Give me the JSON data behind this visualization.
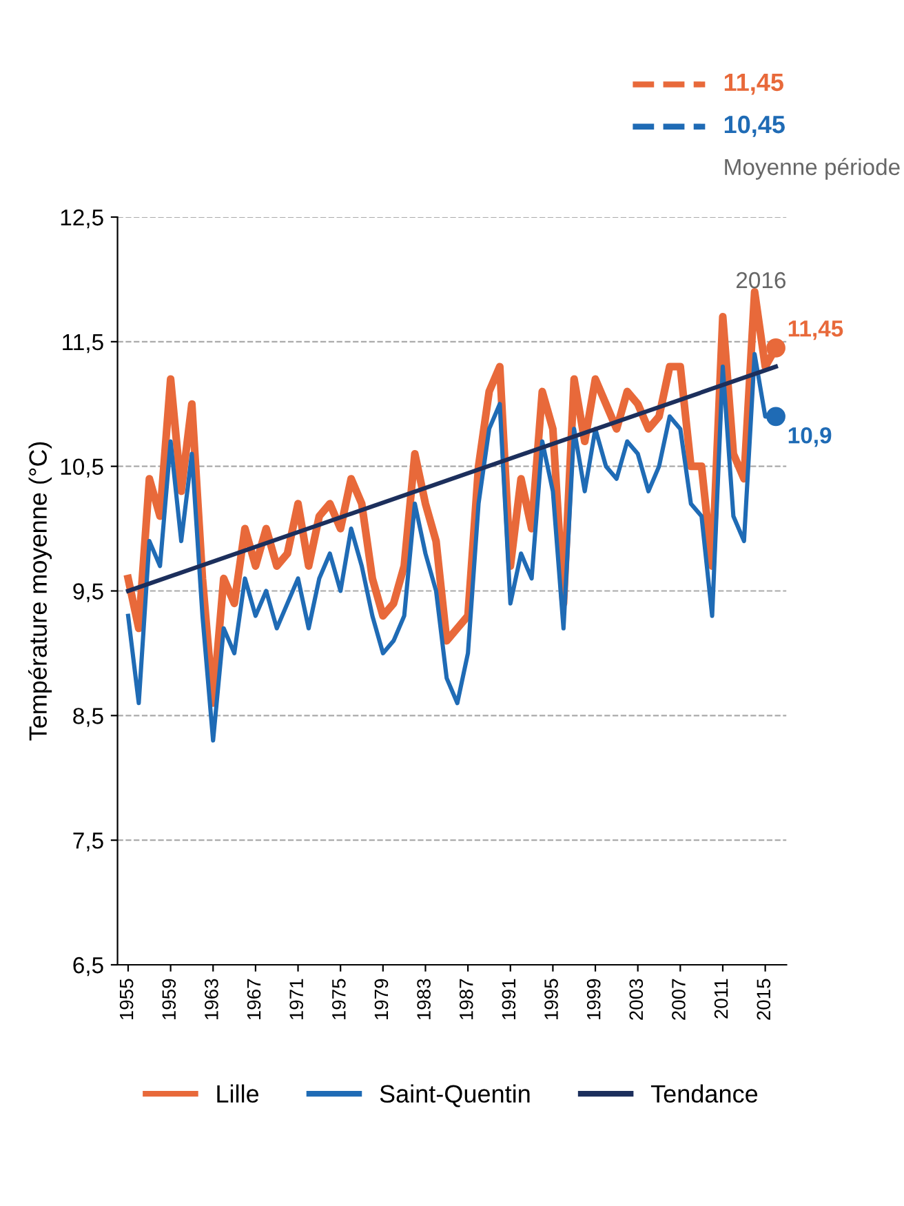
{
  "chart_data": {
    "type": "line",
    "ylabel": "Température moyenne (°C)",
    "x": [
      1955,
      1956,
      1957,
      1958,
      1959,
      1960,
      1961,
      1962,
      1963,
      1964,
      1965,
      1966,
      1967,
      1968,
      1969,
      1970,
      1971,
      1972,
      1973,
      1974,
      1975,
      1976,
      1977,
      1978,
      1979,
      1980,
      1981,
      1982,
      1983,
      1984,
      1985,
      1986,
      1987,
      1988,
      1989,
      1990,
      1991,
      1992,
      1993,
      1994,
      1995,
      1996,
      1997,
      1998,
      1999,
      2000,
      2001,
      2002,
      2003,
      2004,
      2005,
      2006,
      2007,
      2008,
      2009,
      2010,
      2011,
      2012,
      2013,
      2014,
      2015,
      2016
    ],
    "series": [
      {
        "name": "Lille",
        "color": "#e8693a",
        "values": [
          9.6,
          9.2,
          10.4,
          10.1,
          11.2,
          10.3,
          11.0,
          9.6,
          8.6,
          9.6,
          9.4,
          10.0,
          9.7,
          10.0,
          9.7,
          9.8,
          10.2,
          9.7,
          10.1,
          10.2,
          10.0,
          10.4,
          10.2,
          9.6,
          9.3,
          9.4,
          9.7,
          10.6,
          10.2,
          9.9,
          9.1,
          9.2,
          9.3,
          10.5,
          11.1,
          11.3,
          9.7,
          10.4,
          10.0,
          11.1,
          10.8,
          9.4,
          11.2,
          10.7,
          11.2,
          11.0,
          10.8,
          11.1,
          11.0,
          10.8,
          10.9,
          11.3,
          11.3,
          10.5,
          10.5,
          9.7,
          11.7,
          10.6,
          10.4,
          11.9,
          11.3,
          11.45
        ],
        "value_labels": [
          null,
          null,
          null,
          null,
          null,
          null,
          null,
          null,
          null,
          null,
          null,
          null,
          null,
          null,
          null,
          null,
          null,
          null,
          null,
          null,
          null,
          null,
          null,
          null,
          null,
          null,
          null,
          null,
          null,
          null,
          null,
          null,
          null,
          null,
          null,
          null,
          null,
          null,
          null,
          null,
          null,
          null,
          null,
          null,
          null,
          null,
          null,
          null,
          null,
          null,
          null,
          null,
          null,
          null,
          null,
          null,
          null,
          null,
          null,
          null,
          null,
          "11,45"
        ]
      },
      {
        "name": "Saint-Quentin",
        "color": "#1f6bb5",
        "values": [
          9.3,
          8.6,
          9.9,
          9.7,
          10.7,
          9.9,
          10.6,
          9.3,
          8.3,
          9.2,
          9.0,
          9.6,
          9.3,
          9.5,
          9.2,
          9.4,
          9.6,
          9.2,
          9.6,
          9.8,
          9.5,
          10.0,
          9.7,
          9.3,
          9.0,
          9.1,
          9.3,
          10.2,
          9.8,
          9.5,
          8.8,
          8.6,
          9.0,
          10.2,
          10.8,
          11.0,
          9.4,
          9.8,
          9.6,
          10.7,
          10.3,
          9.2,
          10.8,
          10.3,
          10.8,
          10.5,
          10.4,
          10.7,
          10.6,
          10.3,
          10.5,
          10.9,
          10.8,
          10.2,
          10.1,
          9.3,
          11.3,
          10.1,
          9.9,
          11.4,
          10.9,
          10.9
        ],
        "value_labels": [
          null,
          null,
          null,
          null,
          null,
          null,
          null,
          null,
          null,
          null,
          null,
          null,
          null,
          null,
          null,
          null,
          null,
          null,
          null,
          null,
          null,
          null,
          null,
          null,
          null,
          null,
          null,
          null,
          null,
          null,
          null,
          null,
          null,
          null,
          null,
          null,
          null,
          null,
          null,
          null,
          null,
          null,
          null,
          null,
          null,
          null,
          null,
          null,
          null,
          null,
          null,
          null,
          null,
          null,
          null,
          null,
          null,
          null,
          null,
          null,
          null,
          "10,9"
        ]
      },
      {
        "name": "Tendance",
        "color": "#1c2f5c",
        "x": [
          1955,
          2016
        ],
        "values": [
          9.5,
          11.3
        ]
      }
    ],
    "xlim": [
      1954,
      2017
    ],
    "ylim": [
      6.5,
      12.5
    ],
    "xticks": [
      1955,
      1959,
      1963,
      1967,
      1971,
      1975,
      1979,
      1983,
      1987,
      1991,
      1995,
      1999,
      2003,
      2007,
      2011,
      2015
    ],
    "yticks": [
      {
        "value": 6.5,
        "label": "6,5"
      },
      {
        "value": 7.5,
        "label": "7,5"
      },
      {
        "value": 8.5,
        "label": "8,5"
      },
      {
        "value": 9.5,
        "label": "9,5"
      },
      {
        "value": 10.5,
        "label": "10,5"
      },
      {
        "value": 11.5,
        "label": "11,5"
      },
      {
        "value": 12.5,
        "label": "12,5"
      }
    ],
    "grid": "y",
    "legend": "bottom",
    "annotations": [
      "2016",
      "11,45",
      "10,45",
      "Moyenne période"
    ]
  }
}
